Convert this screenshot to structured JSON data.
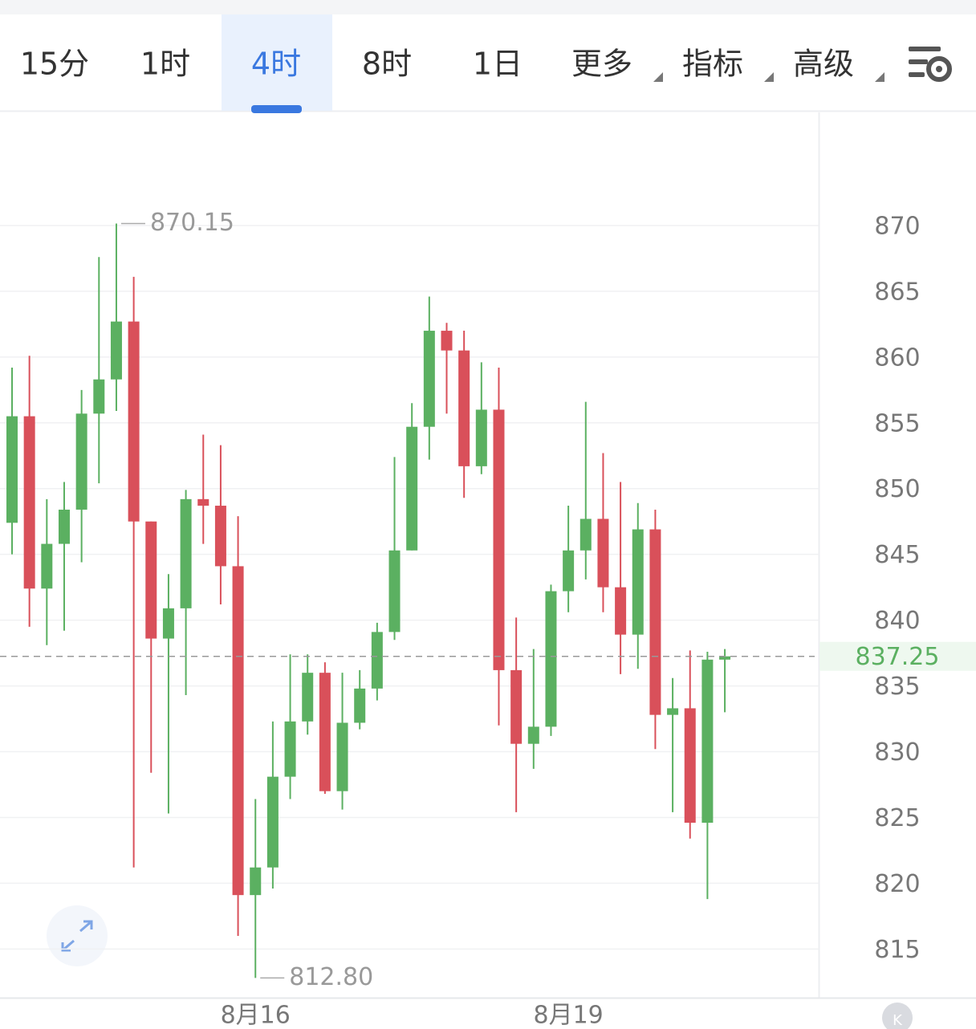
{
  "tabs": {
    "items": [
      "15分",
      "1时",
      "4时",
      "8时",
      "1日",
      "更多",
      "指标",
      "高级"
    ],
    "active": 2,
    "dropdown": [
      5,
      6,
      7
    ]
  },
  "chart_data": {
    "type": "candlestick",
    "categories": [
      null,
      null,
      null,
      null,
      null,
      null,
      null,
      null,
      null,
      null,
      null,
      null,
      null,
      null,
      "8月16",
      null,
      null,
      null,
      null,
      null,
      null,
      null,
      null,
      null,
      null,
      null,
      null,
      null,
      null,
      null,
      null,
      null,
      "8月19",
      null,
      null,
      null,
      null,
      null,
      null,
      null,
      null,
      null
    ],
    "open": [
      847.4,
      855.5,
      842.4,
      845.8,
      848.4,
      855.7,
      858.3,
      862.7,
      847.5,
      838.6,
      840.9,
      849.2,
      848.7,
      844.1,
      819.1,
      821.2,
      828.1,
      832.3,
      836.0,
      827.0,
      832.2,
      834.8,
      839.1,
      845.3,
      854.7,
      862.0,
      860.5,
      851.7,
      856.0,
      836.2,
      830.6,
      831.9,
      842.2,
      845.3,
      847.7,
      842.5,
      838.9,
      846.9,
      832.8,
      833.3,
      824.6,
      837.0
    ],
    "high": [
      859.2,
      860.1,
      849.2,
      850.5,
      857.5,
      867.6,
      870.15,
      866.1,
      847.5,
      843.5,
      849.9,
      854.1,
      853.3,
      847.9,
      826.4,
      832.3,
      837.4,
      837.4,
      836.8,
      836.0,
      836.2,
      839.8,
      852.4,
      856.5,
      864.6,
      862.6,
      862.0,
      859.6,
      859.2,
      840.2,
      837.8,
      842.7,
      848.7,
      856.6,
      852.7,
      850.5,
      848.9,
      848.4,
      835.6,
      837.7,
      837.6,
      837.8
    ],
    "low": [
      845.0,
      839.5,
      838.1,
      839.2,
      844.4,
      850.4,
      855.9,
      821.2,
      828.4,
      825.3,
      834.3,
      845.8,
      841.2,
      816.0,
      812.8,
      819.6,
      826.4,
      831.3,
      826.8,
      825.6,
      831.7,
      833.9,
      838.5,
      845.3,
      852.2,
      855.7,
      849.3,
      851.1,
      832.0,
      825.4,
      828.7,
      831.2,
      840.6,
      843.1,
      840.6,
      835.9,
      836.3,
      830.2,
      825.4,
      823.4,
      818.8,
      833.0
    ],
    "close": [
      855.5,
      842.4,
      845.8,
      848.4,
      855.7,
      858.3,
      862.7,
      847.5,
      838.6,
      840.9,
      849.2,
      848.7,
      844.1,
      819.1,
      821.2,
      828.1,
      832.3,
      836.0,
      827.0,
      832.2,
      834.8,
      839.1,
      845.3,
      854.7,
      862.0,
      860.5,
      851.7,
      856.0,
      836.2,
      830.6,
      831.9,
      842.2,
      845.3,
      847.7,
      842.5,
      838.9,
      846.9,
      832.8,
      833.3,
      824.6,
      837.0,
      837.25
    ],
    "up_color": "#5bb061",
    "down_color": "#d9505a",
    "ylim": [
      811.3,
      878.6
    ],
    "yticks": [
      815,
      820,
      825,
      830,
      835,
      840,
      845,
      850,
      855,
      860,
      865,
      870
    ],
    "grid": true,
    "last_price": 837.25,
    "max_label": {
      "value": 870.15,
      "label": "870.15"
    },
    "min_label": {
      "value": 812.8,
      "label": "812.80"
    }
  },
  "badge": "K"
}
